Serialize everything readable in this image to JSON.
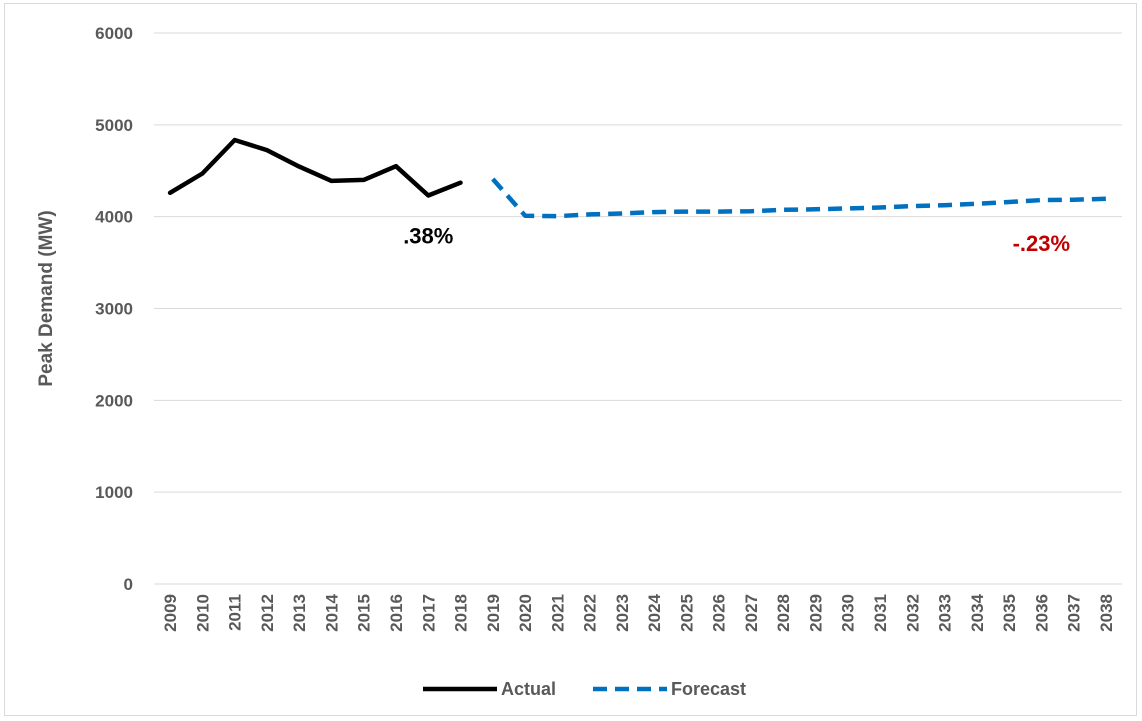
{
  "chart_data": {
    "type": "line",
    "title": "",
    "xlabel": "",
    "ylabel": "Peak Demand (MW)",
    "ylim": [
      0,
      6000
    ],
    "yticks": [
      0,
      1000,
      2000,
      3000,
      4000,
      5000,
      6000
    ],
    "grid": "horizontal",
    "legend_position": "bottom",
    "categories": [
      "2009",
      "2010",
      "2011",
      "2012",
      "2013",
      "2014",
      "2015",
      "2016",
      "2017",
      "2018",
      "2019",
      "2020",
      "2021",
      "2022",
      "2023",
      "2024",
      "2025",
      "2026",
      "2027",
      "2028",
      "2029",
      "2030",
      "2031",
      "2032",
      "2033",
      "2034",
      "2035",
      "2036",
      "2037",
      "2038"
    ],
    "series": [
      {
        "name": "Actual",
        "color": "#000000",
        "dash": "solid",
        "values": [
          4260,
          4470,
          4835,
          4725,
          4545,
          4390,
          4400,
          4550,
          4230,
          4370,
          null,
          null,
          null,
          null,
          null,
          null,
          null,
          null,
          null,
          null,
          null,
          null,
          null,
          null,
          null,
          null,
          null,
          null,
          null,
          null
        ]
      },
      {
        "name": "Forecast",
        "color": "#0070c0",
        "dash": "dashed",
        "values": [
          null,
          null,
          null,
          null,
          null,
          null,
          null,
          null,
          null,
          null,
          4410,
          4010,
          4005,
          4025,
          4035,
          4050,
          4055,
          4055,
          4060,
          4075,
          4080,
          4090,
          4100,
          4115,
          4125,
          4140,
          4160,
          4180,
          4185,
          4195
        ]
      }
    ],
    "annotations": [
      {
        "text": ".38%",
        "color": "#000000",
        "anchor_category": "2017",
        "anchor_value": 4000
      },
      {
        "text": "-.23%",
        "color": "#c00000",
        "anchor_category": "2036",
        "anchor_value": 3920
      }
    ]
  }
}
